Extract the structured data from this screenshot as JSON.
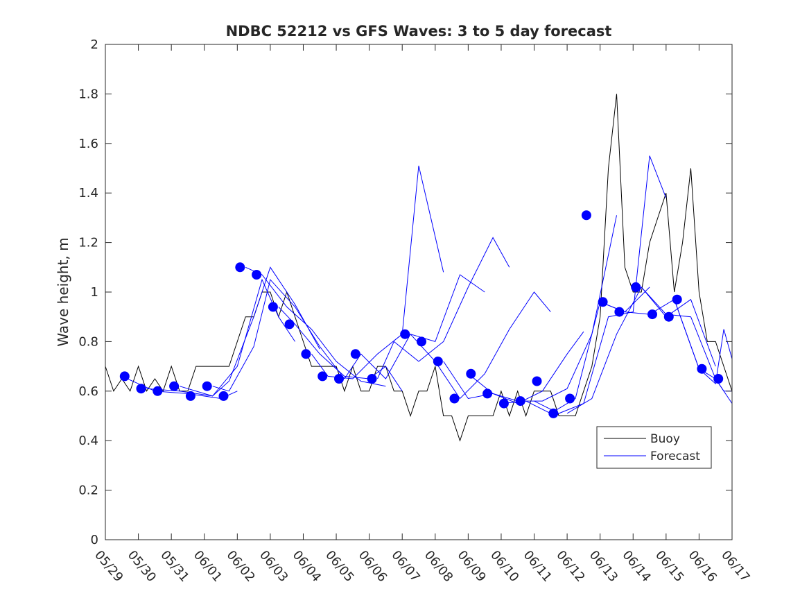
{
  "chart_data": {
    "type": "line",
    "title": "NDBC 52212 vs GFS Waves: 3 to 5 day forecast",
    "xlabel": "",
    "ylabel": "Wave height, m",
    "ylim": [
      0,
      2
    ],
    "yticks": [
      0,
      0.2,
      0.4,
      0.6,
      0.8,
      1,
      1.2,
      1.4,
      1.6,
      1.8,
      2
    ],
    "ytick_labels": [
      "0",
      "0.2",
      "0.4",
      "0.6",
      "0.8",
      "1",
      "1.2",
      "1.4",
      "1.6",
      "1.8",
      "2"
    ],
    "xlim": [
      "05/29 00:00",
      "06/17 00:00"
    ],
    "xtick_labels": [
      "05/29",
      "05/30",
      "05/31",
      "06/01",
      "06/02",
      "06/03",
      "06/04",
      "06/05",
      "06/06",
      "06/07",
      "06/08",
      "06/09",
      "06/10",
      "06/11",
      "06/12",
      "06/13",
      "06/14",
      "06/15",
      "06/16",
      "06/17"
    ],
    "legend": {
      "location": "lower-right",
      "entries": [
        "Buoy",
        "Forecast"
      ]
    },
    "grid": false,
    "colors": {
      "buoy": "#000000",
      "forecast": "#0000ff",
      "axes": "#262626"
    },
    "buoy": {
      "name": "Buoy",
      "x": [
        "05/29 00:00",
        "05/29 06:00",
        "05/29 12:00",
        "05/29 18:00",
        "05/30 00:00",
        "05/30 06:00",
        "05/30 12:00",
        "05/30 18:00",
        "05/31 00:00",
        "05/31 06:00",
        "05/31 12:00",
        "05/31 18:00",
        "06/01 00:00",
        "06/01 06:00",
        "06/01 12:00",
        "06/01 18:00",
        "06/02 00:00",
        "06/02 06:00",
        "06/02 12:00",
        "06/02 18:00",
        "06/03 00:00",
        "06/03 06:00",
        "06/03 12:00",
        "06/03 18:00",
        "06/04 00:00",
        "06/04 06:00",
        "06/04 12:00",
        "06/04 18:00",
        "06/05 00:00",
        "06/05 06:00",
        "06/05 12:00",
        "06/05 18:00",
        "06/06 00:00",
        "06/06 06:00",
        "06/06 12:00",
        "06/06 18:00",
        "06/07 00:00",
        "06/07 06:00",
        "06/07 12:00",
        "06/07 18:00",
        "06/08 00:00",
        "06/08 06:00",
        "06/08 12:00",
        "06/08 18:00",
        "06/09 00:00",
        "06/09 06:00",
        "06/09 12:00",
        "06/09 18:00",
        "06/10 00:00",
        "06/10 06:00",
        "06/10 12:00",
        "06/10 18:00",
        "06/11 00:00",
        "06/11 06:00",
        "06/11 12:00",
        "06/11 18:00",
        "06/12 00:00",
        "06/12 06:00",
        "06/12 12:00",
        "06/12 18:00",
        "06/13 00:00",
        "06/13 06:00",
        "06/13 12:00",
        "06/13 18:00",
        "06/14 00:00",
        "06/14 06:00",
        "06/14 12:00",
        "06/14 18:00",
        "06/15 00:00",
        "06/15 06:00",
        "06/15 12:00",
        "06/15 18:00",
        "06/16 00:00",
        "06/16 06:00",
        "06/16 12:00",
        "06/16 18:00",
        "06/17 00:00"
      ],
      "values": [
        0.7,
        0.6,
        0.65,
        0.6,
        0.7,
        0.6,
        0.65,
        0.6,
        0.7,
        0.6,
        0.6,
        0.7,
        0.7,
        0.7,
        0.7,
        0.7,
        0.8,
        0.9,
        0.9,
        1.0,
        1.0,
        0.9,
        1.0,
        0.9,
        0.8,
        0.7,
        0.7,
        0.7,
        0.7,
        0.6,
        0.7,
        0.6,
        0.6,
        0.7,
        0.7,
        0.6,
        0.6,
        0.5,
        0.6,
        0.6,
        0.7,
        0.5,
        0.5,
        0.4,
        0.5,
        0.5,
        0.5,
        0.5,
        0.6,
        0.5,
        0.6,
        0.5,
        0.6,
        0.6,
        0.6,
        0.5,
        0.5,
        0.5,
        0.6,
        0.7,
        0.9,
        1.5,
        1.8,
        1.1,
        1.0,
        1.0,
        1.2,
        1.3,
        1.4,
        1.0,
        1.2,
        1.5,
        1.0,
        0.8,
        0.8,
        0.7,
        0.6
      ]
    },
    "forecast_series": [
      {
        "x": [
          "05/29 12:00",
          "05/30 12:00",
          "05/31 12:00",
          "06/01 12:00",
          "06/02 00:00"
        ],
        "values": [
          0.66,
          0.6,
          0.59,
          0.57,
          0.6
        ]
      },
      {
        "x": [
          "05/30 06:00",
          "05/31 06:00",
          "06/01 06:00",
          "06/02 00:00",
          "06/02 18:00",
          "06/03 06:00",
          "06/03 18:00"
        ],
        "values": [
          0.61,
          0.6,
          0.58,
          0.7,
          1.05,
          0.9,
          0.8
        ]
      },
      {
        "x": [
          "05/31 06:00",
          "06/01 06:00",
          "06/01 18:00",
          "06/02 12:00",
          "06/03 00:00",
          "06/03 18:00",
          "06/04 12:00"
        ],
        "values": [
          0.62,
          0.58,
          0.64,
          0.9,
          1.1,
          0.95,
          0.77
        ]
      },
      {
        "x": [
          "06/01 06:00",
          "06/01 18:00",
          "06/02 12:00",
          "06/03 00:00",
          "06/03 18:00",
          "06/04 12:00",
          "06/05 06:00"
        ],
        "values": [
          0.62,
          0.6,
          0.78,
          1.05,
          0.94,
          0.78,
          0.65
        ]
      },
      {
        "x": [
          "06/02 06:00",
          "06/02 18:00",
          "06/03 12:00",
          "06/04 06:00",
          "06/05 00:00",
          "06/05 18:00",
          "06/06 12:00"
        ],
        "values": [
          1.1,
          1.07,
          0.94,
          0.85,
          0.72,
          0.64,
          0.62
        ]
      },
      {
        "x": [
          "06/03 06:00",
          "06/03 18:00",
          "06/04 12:00",
          "06/05 06:00",
          "06/06 00:00",
          "06/06 12:00",
          "06/07 00:00"
        ],
        "values": [
          0.94,
          0.87,
          0.75,
          0.66,
          0.65,
          0.7,
          0.6
        ]
      },
      {
        "x": [
          "06/04 06:00",
          "06/04 18:00",
          "06/05 12:00",
          "06/06 06:00",
          "06/07 00:00",
          "06/07 12:00",
          "06/08 06:00"
        ],
        "values": [
          0.75,
          0.66,
          0.65,
          0.75,
          0.83,
          1.51,
          1.08
        ]
      },
      {
        "x": [
          "06/05 06:00",
          "06/05 18:00",
          "06/06 12:00",
          "06/07 06:00",
          "06/08 00:00",
          "06/08 18:00",
          "06/09 12:00"
        ],
        "values": [
          0.65,
          0.75,
          0.65,
          0.83,
          0.8,
          1.07,
          1.0
        ]
      },
      {
        "x": [
          "06/06 06:00",
          "06/06 18:00",
          "06/07 12:00",
          "06/08 06:00",
          "06/09 00:00",
          "06/09 18:00",
          "06/10 06:00"
        ],
        "values": [
          0.65,
          0.8,
          0.72,
          0.8,
          1.02,
          1.22,
          1.1
        ]
      },
      {
        "x": [
          "06/07 06:00",
          "06/08 00:00",
          "06/08 18:00",
          "06/09 12:00",
          "06/10 06:00",
          "06/11 00:00",
          "06/11 12:00"
        ],
        "values": [
          0.83,
          0.72,
          0.57,
          0.67,
          0.85,
          1.0,
          0.92
        ]
      },
      {
        "x": [
          "06/08 06:00",
          "06/09 00:00",
          "06/09 18:00",
          "06/10 12:00",
          "06/11 06:00",
          "06/12 00:00",
          "06/12 12:00"
        ],
        "values": [
          0.72,
          0.57,
          0.59,
          0.55,
          0.6,
          0.75,
          0.84
        ]
      },
      {
        "x": [
          "06/09 00:00",
          "06/09 18:00",
          "06/10 12:00",
          "06/11 06:00",
          "06/12 00:00",
          "06/12 18:00",
          "06/13 12:00"
        ],
        "values": [
          0.67,
          0.59,
          0.56,
          0.56,
          0.61,
          0.83,
          1.31
        ]
      },
      {
        "x": [
          "06/10 00:00",
          "06/10 18:00",
          "06/11 12:00",
          "06/12 06:00",
          "06/13 00:00",
          "06/13 18:00",
          "06/14 12:00"
        ],
        "values": [
          0.55,
          0.56,
          0.51,
          0.57,
          0.96,
          0.92,
          1.02
        ]
      },
      {
        "x": [
          "06/11 00:00",
          "06/11 18:00",
          "06/12 12:00",
          "06/13 06:00",
          "06/14 00:00",
          "06/14 12:00",
          "06/15 00:00"
        ],
        "values": [
          0.56,
          0.51,
          0.55,
          0.9,
          0.92,
          1.55,
          1.38
        ]
      },
      {
        "x": [
          "06/12 00:00",
          "06/12 18:00",
          "06/13 12:00",
          "06/14 06:00",
          "06/15 00:00",
          "06/15 18:00",
          "06/16 12:00"
        ],
        "values": [
          0.51,
          0.57,
          0.83,
          1.02,
          0.9,
          0.97,
          0.7
        ]
      },
      {
        "x": [
          "06/13 00:00",
          "06/13 18:00",
          "06/14 12:00",
          "06/15 06:00",
          "06/16 00:00",
          "06/16 12:00",
          "06/17 00:00"
        ],
        "values": [
          0.96,
          0.92,
          0.91,
          0.97,
          0.69,
          0.65,
          0.55
        ]
      },
      {
        "x": [
          "06/14 06:00",
          "06/15 00:00",
          "06/15 18:00",
          "06/16 12:00",
          "06/16 18:00",
          "06/17 00:00"
        ],
        "values": [
          1.02,
          0.91,
          0.9,
          0.65,
          0.6,
          0.6
        ]
      },
      {
        "x": [
          "06/15 06:00",
          "06/16 00:00",
          "06/16 12:00",
          "06/16 18:00",
          "06/17 00:00"
        ],
        "values": [
          0.97,
          0.69,
          0.63,
          0.85,
          0.73
        ]
      }
    ],
    "forecast_markers": {
      "x": [
        "05/29 14:00",
        "05/30 02:00",
        "05/30 14:00",
        "05/31 02:00",
        "05/31 14:00",
        "06/01 02:00",
        "06/01 14:00",
        "06/02 02:00",
        "06/02 14:00",
        "06/03 02:00",
        "06/03 14:00",
        "06/04 02:00",
        "06/04 14:00",
        "06/05 02:00",
        "06/05 14:00",
        "06/06 02:00",
        "06/07 02:00",
        "06/07 14:00",
        "06/08 02:00",
        "06/08 14:00",
        "06/09 02:00",
        "06/09 14:00",
        "06/10 02:00",
        "06/10 14:00",
        "06/11 02:00",
        "06/11 14:00",
        "06/12 02:00",
        "06/12 14:00",
        "06/13 02:00",
        "06/13 14:00",
        "06/14 02:00",
        "06/14 14:00",
        "06/15 02:00",
        "06/15 08:00",
        "06/16 02:00",
        "06/16 14:00"
      ],
      "values": [
        0.66,
        0.61,
        0.6,
        0.62,
        0.58,
        0.62,
        0.58,
        1.1,
        1.07,
        0.94,
        0.87,
        0.75,
        0.66,
        0.65,
        0.75,
        0.65,
        0.83,
        0.8,
        0.72,
        0.57,
        0.67,
        0.59,
        0.55,
        0.56,
        0.64,
        0.51,
        0.57,
        1.31,
        0.96,
        0.92,
        1.02,
        0.91,
        0.9,
        0.97,
        0.69,
        0.65
      ]
    }
  }
}
